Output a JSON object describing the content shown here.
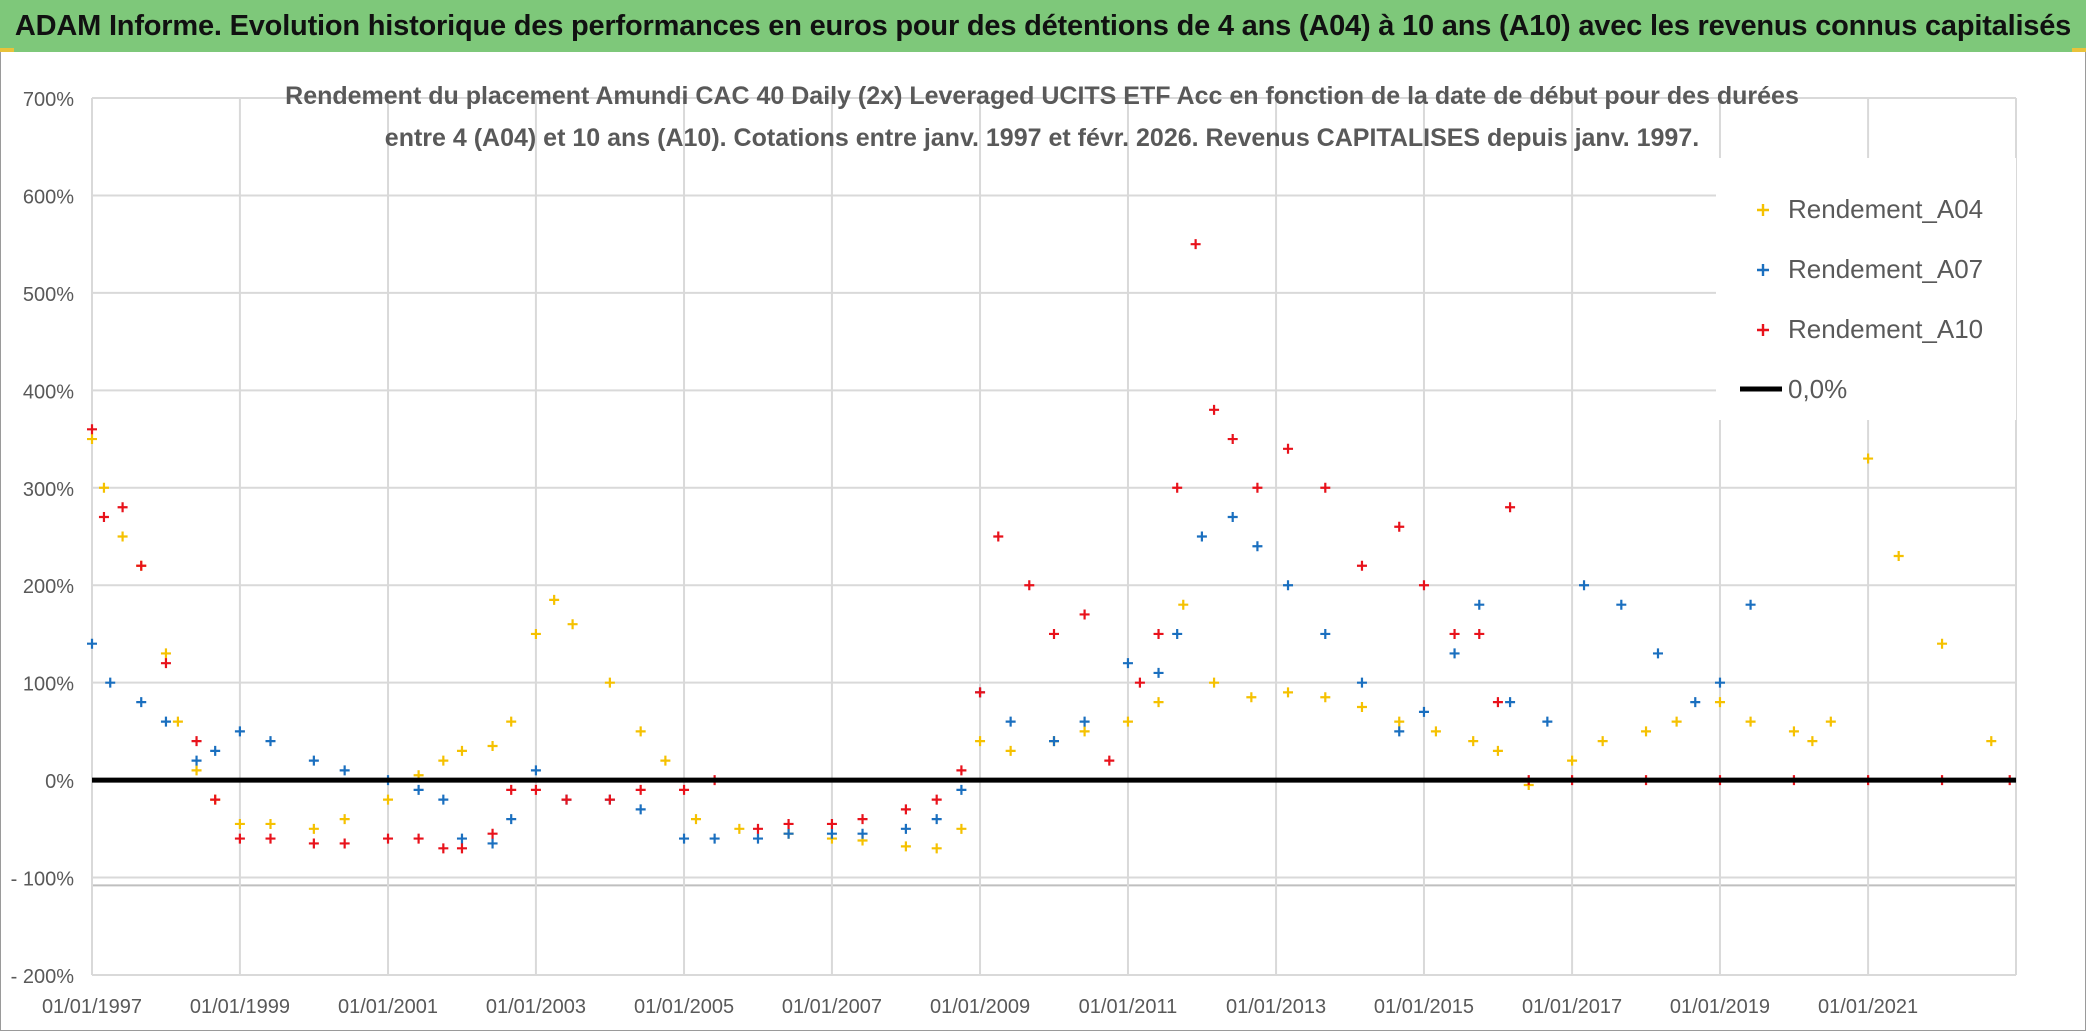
{
  "banner": {
    "text": "ADAM Informe. Evolution historique des performances en euros pour des détentions de 4 ans (A04) à 10 ans (A10) avec les revenus connus capitalisés"
  },
  "colors": {
    "banner_bg": "#7ec87a",
    "a04": "#f5c100",
    "a07": "#1a6fbf",
    "a10": "#e8121b",
    "zero_line": "#000000",
    "grid": "#d9d9d9"
  },
  "chart_data": {
    "type": "scatter",
    "title": "Rendement du placement Amundi CAC 40 Daily (2x) Leveraged UCITS ETF Acc en fonction de la date de début pour des durées entre 4 (A04) et 10 ans (A10). Cotations entre janv. 1997 et févr. 2026. Revenus CAPITALISES depuis janv. 1997.",
    "title_lines": [
      "Rendement du placement Amundi CAC 40 Daily (2x) Leveraged UCITS ETF Acc en fonction de la date de début pour des durées",
      "entre 4 (A04) et 10 ans (A10). Cotations entre janv. 1997 et févr. 2026. Revenus CAPITALISES depuis janv. 1997."
    ],
    "xlabel": "",
    "ylabel": "",
    "x_range": [
      "1997-01-01",
      "2023-01-01"
    ],
    "ylim": [
      -200,
      700
    ],
    "y_ticks": [
      {
        "value": 700,
        "label": "700%"
      },
      {
        "value": 600,
        "label": "600%"
      },
      {
        "value": 500,
        "label": "500%"
      },
      {
        "value": 400,
        "label": "400%"
      },
      {
        "value": 300,
        "label": "300%"
      },
      {
        "value": 200,
        "label": "200%"
      },
      {
        "value": 100,
        "label": "100%"
      },
      {
        "value": 0,
        "label": "0%"
      },
      {
        "value": -100,
        "label": "- 100%"
      },
      {
        "value": -200,
        "label": "- 200%"
      }
    ],
    "x_ticks": [
      {
        "value": "1997-01-01",
        "label": "01/01/1997"
      },
      {
        "value": "1999-01-01",
        "label": "01/01/1999"
      },
      {
        "value": "2001-01-01",
        "label": "01/01/2001"
      },
      {
        "value": "2003-01-01",
        "label": "01/01/2003"
      },
      {
        "value": "2005-01-01",
        "label": "01/01/2005"
      },
      {
        "value": "2007-01-01",
        "label": "01/01/2007"
      },
      {
        "value": "2009-01-01",
        "label": "01/01/2009"
      },
      {
        "value": "2011-01-01",
        "label": "01/01/2011"
      },
      {
        "value": "2013-01-01",
        "label": "01/01/2013"
      },
      {
        "value": "2015-01-01",
        "label": "01/01/2015"
      },
      {
        "value": "2017-01-01",
        "label": "01/01/2017"
      },
      {
        "value": "2019-01-01",
        "label": "01/01/2019"
      },
      {
        "value": "2021-01-01",
        "label": "01/01/2021"
      }
    ],
    "grid": true,
    "legend_position": "top-right",
    "series": [
      {
        "name": "Rendement_A04",
        "marker": "plus",
        "x": [
          "1997-01-01",
          "1997-03-01",
          "1997-06-01",
          "1997-09-01",
          "1998-01-01",
          "1998-03-01",
          "1998-06-01",
          "1998-09-01",
          "1999-01-01",
          "1999-06-01",
          "2000-01-01",
          "2000-06-01",
          "2001-01-01",
          "2001-06-01",
          "2001-10-01",
          "2002-01-01",
          "2002-06-01",
          "2002-09-01",
          "2003-01-01",
          "2003-04-01",
          "2003-07-01",
          "2004-01-01",
          "2004-06-01",
          "2004-10-01",
          "2005-03-01",
          "2005-10-01",
          "2006-06-01",
          "2007-01-01",
          "2007-06-01",
          "2008-01-01",
          "2008-06-01",
          "2008-10-01",
          "2009-01-01",
          "2009-06-01",
          "2010-01-01",
          "2010-06-01",
          "2011-01-01",
          "2011-06-01",
          "2011-10-01",
          "2012-03-01",
          "2012-09-01",
          "2013-03-01",
          "2013-09-01",
          "2014-03-01",
          "2014-09-01",
          "2015-03-01",
          "2015-09-01",
          "2016-01-01",
          "2016-06-01",
          "2017-01-01",
          "2017-06-01",
          "2018-01-01",
          "2018-06-01",
          "2019-01-01",
          "2019-06-01",
          "2020-01-01",
          "2020-04-01",
          "2020-07-01",
          "2021-01-01",
          "2021-06-01",
          "2022-01-01",
          "2022-09-01"
        ],
        "y": [
          350,
          300,
          250,
          220,
          130,
          60,
          10,
          -20,
          -45,
          -45,
          -50,
          -40,
          -20,
          5,
          20,
          30,
          35,
          60,
          150,
          185,
          160,
          100,
          50,
          20,
          -40,
          -50,
          -55,
          -60,
          -62,
          -68,
          -70,
          -50,
          40,
          30,
          40,
          50,
          60,
          80,
          180,
          100,
          85,
          90,
          85,
          75,
          60,
          50,
          40,
          30,
          -5,
          20,
          40,
          50,
          60,
          80,
          60,
          50,
          40,
          60,
          330,
          230,
          140,
          40
        ]
      },
      {
        "name": "Rendement_A07",
        "marker": "plus",
        "x": [
          "1997-01-01",
          "1997-04-01",
          "1997-09-01",
          "1998-01-01",
          "1998-06-01",
          "1998-09-01",
          "1999-01-01",
          "1999-06-01",
          "2000-01-01",
          "2000-06-01",
          "2001-01-01",
          "2001-06-01",
          "2001-10-01",
          "2002-01-01",
          "2002-06-01",
          "2002-09-01",
          "2003-01-01",
          "2003-06-01",
          "2004-01-01",
          "2004-06-01",
          "2005-01-01",
          "2005-06-01",
          "2006-01-01",
          "2006-06-01",
          "2007-01-01",
          "2007-06-01",
          "2008-01-01",
          "2008-06-01",
          "2008-10-01",
          "2009-01-01",
          "2009-06-01",
          "2010-01-01",
          "2010-06-01",
          "2011-01-01",
          "2011-06-01",
          "2011-09-01",
          "2012-01-01",
          "2012-06-01",
          "2012-10-01",
          "2013-03-01",
          "2013-09-01",
          "2014-03-01",
          "2014-09-01",
          "2015-01-01",
          "2015-06-01",
          "2015-10-01",
          "2016-03-01",
          "2016-09-01",
          "2017-03-01",
          "2017-09-01",
          "2018-03-01",
          "2018-09-01",
          "2019-01-01",
          "2019-06-01"
        ],
        "y": [
          140,
          100,
          80,
          60,
          20,
          30,
          50,
          40,
          20,
          10,
          0,
          -10,
          -20,
          -60,
          -65,
          -40,
          10,
          -20,
          -20,
          -30,
          -60,
          -60,
          -60,
          -55,
          -55,
          -55,
          -50,
          -40,
          -10,
          90,
          60,
          40,
          60,
          120,
          110,
          150,
          250,
          270,
          240,
          200,
          150,
          100,
          50,
          70,
          130,
          180,
          80,
          60,
          200,
          180,
          130,
          80,
          100,
          180
        ]
      },
      {
        "name": "Rendement_A10",
        "marker": "plus",
        "x": [
          "1997-01-01",
          "1997-03-01",
          "1997-06-01",
          "1997-09-01",
          "1998-01-01",
          "1998-06-01",
          "1998-09-01",
          "1999-01-01",
          "1999-06-01",
          "2000-01-01",
          "2000-06-01",
          "2001-01-01",
          "2001-06-01",
          "2001-10-01",
          "2002-01-01",
          "2002-06-01",
          "2002-09-01",
          "2003-01-01",
          "2003-06-01",
          "2004-01-01",
          "2004-06-01",
          "2005-01-01",
          "2005-06-01",
          "2006-01-01",
          "2006-06-01",
          "2007-01-01",
          "2007-06-01",
          "2008-01-01",
          "2008-06-01",
          "2008-10-01",
          "2009-01-01",
          "2009-04-01",
          "2009-09-01",
          "2010-01-01",
          "2010-06-01",
          "2010-10-01",
          "2011-03-01",
          "2011-06-01",
          "2011-09-01",
          "2011-12-01",
          "2012-03-01",
          "2012-06-01",
          "2012-10-01",
          "2013-03-01",
          "2013-09-01",
          "2014-03-01",
          "2014-09-01",
          "2015-01-01",
          "2015-06-01",
          "2015-10-01",
          "2016-01-01",
          "2016-03-01",
          "2016-06-01",
          "2017-01-01",
          "2018-01-01",
          "2019-01-01",
          "2020-01-01",
          "2021-01-01",
          "2022-01-01",
          "2022-12-01"
        ],
        "y": [
          360,
          270,
          280,
          220,
          120,
          40,
          -20,
          -60,
          -60,
          -65,
          -65,
          -60,
          -60,
          -70,
          -70,
          -55,
          -10,
          -10,
          -20,
          -20,
          -10,
          -10,
          0,
          -50,
          -45,
          -45,
          -40,
          -30,
          -20,
          10,
          90,
          250,
          200,
          150,
          170,
          20,
          100,
          150,
          300,
          550,
          380,
          350,
          300,
          340,
          300,
          220,
          260,
          200,
          150,
          150,
          80,
          280,
          0,
          0,
          0,
          0,
          0,
          0,
          0,
          0
        ]
      }
    ],
    "reference_line": {
      "name": "0,0%",
      "y": 0
    }
  }
}
